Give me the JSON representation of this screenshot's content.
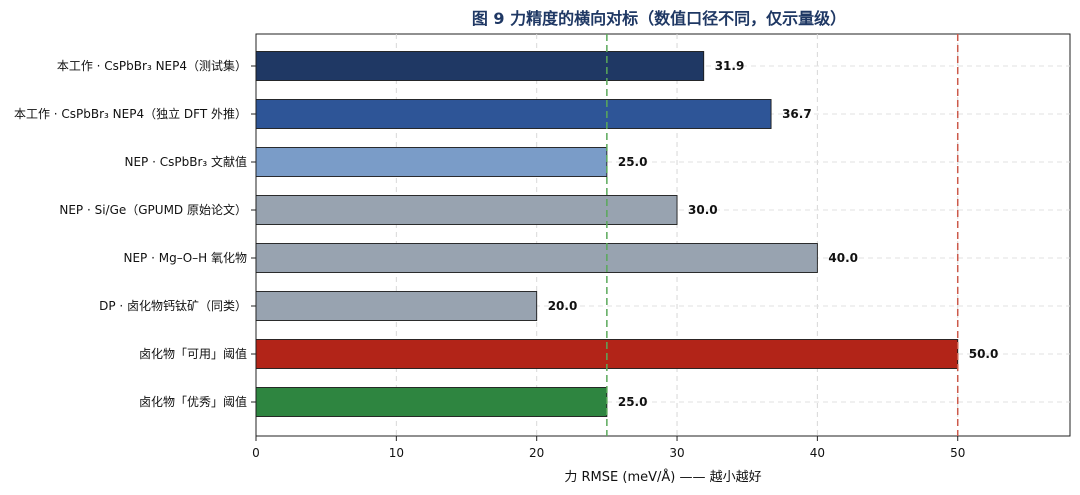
{
  "chart_data": {
    "type": "bar",
    "orientation": "horizontal",
    "title": "图 9  力精度的横向对标（数值口径不同，仅示量级）",
    "xlabel": "力 RMSE (meV/Å)  —— 越小越好",
    "ylabel": "",
    "xlim": [
      0,
      58
    ],
    "xticks": [
      0,
      10,
      20,
      30,
      40,
      50
    ],
    "grid": true,
    "categories": [
      "本工作 · CsPbBr₃ NEP4（测试集）",
      "本工作 · CsPbBr₃ NEP4（独立 DFT 外推）",
      "NEP · CsPbBr₃ 文献值",
      "NEP · Si/Ge（GPUMD 原始论文）",
      "NEP · Mg–O–H 氧化物",
      "DP · 卤化物钙钛矿（同类）",
      "卤化物「可用」阈值",
      "卤化物「优秀」阈值"
    ],
    "values": [
      31.9,
      36.7,
      25.0,
      30.0,
      40.0,
      20.0,
      50.0,
      25.0
    ],
    "value_labels": [
      "31.9",
      "36.7",
      "25.0",
      "30.0",
      "40.0",
      "20.0",
      "50.0",
      "25.0"
    ],
    "colors": [
      "#1f3864",
      "#2e5597",
      "#7a9cc8",
      "#98a3b0",
      "#98a3b0",
      "#98a3b0",
      "#b22418",
      "#2e8540"
    ],
    "reference_lines": [
      {
        "value": 25,
        "color": "#5aa85a",
        "style": "dashed"
      },
      {
        "value": 50,
        "color": "#cc5a4a",
        "style": "dashed"
      }
    ]
  }
}
